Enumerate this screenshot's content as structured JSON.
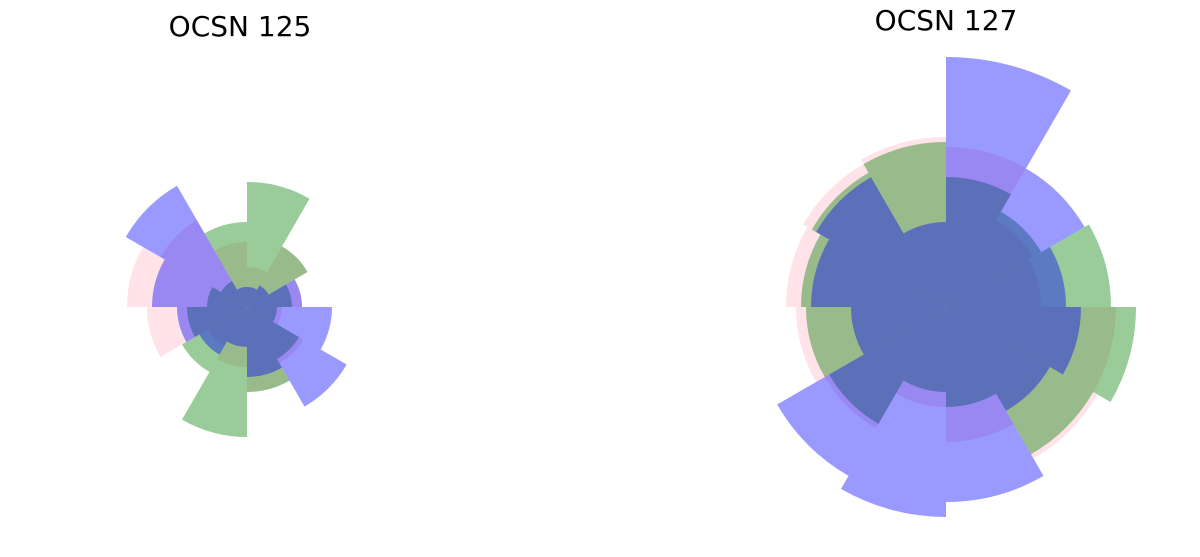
{
  "chart_data": [
    {
      "type": "polar-bar",
      "title": "OCSN 125",
      "sectors": 12,
      "direction": "clockwise-from-north",
      "series": [
        {
          "name": "",
          "color": "#ffc0cb",
          "opacity": 0.45,
          "values": [
            40,
            70,
            55,
            35,
            65,
            85,
            60,
            45,
            100,
            120,
            100,
            65
          ]
        },
        {
          "name": "",
          "color": "#008000",
          "opacity": 0.4,
          "values": [
            125,
            70,
            45,
            30,
            60,
            85,
            130,
            75,
            60,
            40,
            30,
            85
          ]
        },
        {
          "name": "",
          "color": "#0000ff",
          "opacity": 0.4,
          "values": [
            20,
            25,
            55,
            85,
            115,
            70,
            40,
            55,
            70,
            95,
            140,
            20
          ]
        }
      ]
    },
    {
      "type": "polar-bar",
      "title": "OCSN 127",
      "sectors": 12,
      "direction": "clockwise-from-north",
      "series": [
        {
          "name": "",
          "color": "#ffc0cb",
          "opacity": 0.45,
          "values": [
            160,
            100,
            95,
            170,
            175,
            135,
            100,
            140,
            150,
            160,
            165,
            170
          ]
        },
        {
          "name": "",
          "color": "#008000",
          "opacity": 0.4,
          "values": [
            130,
            110,
            165,
            190,
            170,
            100,
            85,
            135,
            140,
            145,
            155,
            165
          ]
        },
        {
          "name": "",
          "color": "#0000ff",
          "opacity": 0.4,
          "values": [
            250,
            160,
            120,
            135,
            120,
            195,
            210,
            195,
            95,
            135,
            150,
            85
          ]
        }
      ]
    }
  ]
}
